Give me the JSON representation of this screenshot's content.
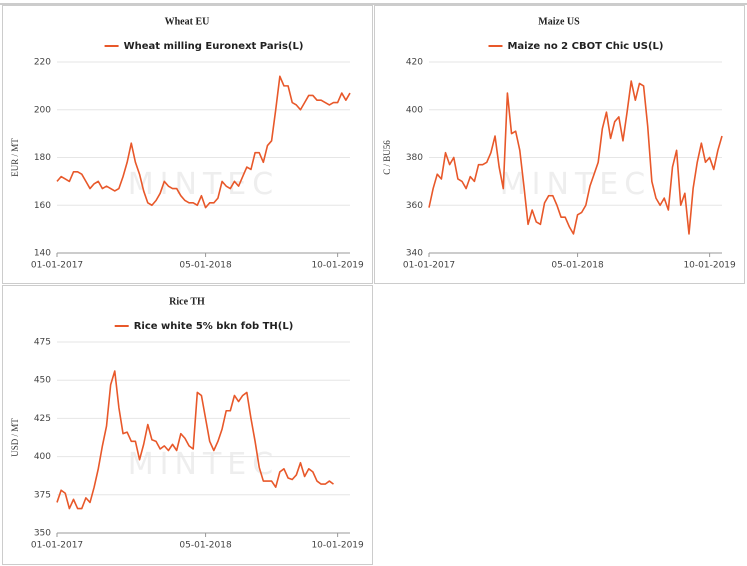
{
  "chart_data": [
    {
      "type": "line",
      "title": "Wheat EU",
      "y_label": "EUR / MT",
      "watermark": "MINTEC",
      "categories": [
        "01-01-2017",
        null,
        null,
        null,
        null,
        null,
        null,
        null,
        null,
        null,
        null,
        null,
        null,
        null,
        null,
        null,
        null,
        null,
        null,
        null,
        null,
        null,
        null,
        null,
        null,
        null,
        null,
        null,
        null,
        null,
        null,
        null,
        null,
        null,
        null,
        null,
        "05-01-2018",
        null,
        null,
        null,
        null,
        null,
        null,
        null,
        null,
        null,
        null,
        null,
        null,
        null,
        null,
        null,
        null,
        null,
        null,
        null,
        null,
        null,
        null,
        null,
        null,
        null,
        null,
        null,
        null,
        null,
        null,
        null,
        "10-01-2019",
        null,
        null,
        null
      ],
      "series": [
        {
          "name": "Wheat milling Euronext Paris(L)",
          "color": "#e8582a",
          "values": [
            170,
            172,
            171,
            170,
            174,
            174,
            173,
            170,
            167,
            169,
            170,
            167,
            168,
            167,
            166,
            167,
            172,
            178,
            186,
            178,
            173,
            166,
            161,
            160,
            162,
            165,
            170,
            168,
            167,
            167,
            164,
            162,
            161,
            161,
            160,
            164,
            159,
            161,
            161,
            163,
            170,
            168,
            167,
            170,
            168,
            172,
            176,
            175,
            182,
            182,
            178,
            185,
            187,
            200,
            214,
            210,
            210,
            203,
            202,
            200,
            203,
            206,
            206,
            204,
            204,
            203,
            202,
            203,
            203,
            207,
            204,
            207
          ]
        }
      ],
      "ylim": [
        140,
        220
      ],
      "yticks": [
        140,
        160,
        180,
        200,
        220
      ],
      "grid": true
    },
    {
      "type": "line",
      "title": "Maize US",
      "y_label": "C / BU56",
      "watermark": "MINTEC",
      "categories": [
        "01-01-2017",
        null,
        null,
        null,
        null,
        null,
        null,
        null,
        null,
        null,
        null,
        null,
        null,
        null,
        null,
        null,
        null,
        null,
        null,
        null,
        null,
        null,
        null,
        null,
        null,
        null,
        null,
        null,
        null,
        null,
        null,
        null,
        null,
        null,
        null,
        null,
        "05-01-2018",
        null,
        null,
        null,
        null,
        null,
        null,
        null,
        null,
        null,
        null,
        null,
        null,
        null,
        null,
        null,
        null,
        null,
        null,
        null,
        null,
        null,
        null,
        null,
        null,
        null,
        null,
        null,
        null,
        null,
        null,
        null,
        "10-01-2019",
        null,
        null,
        null
      ],
      "series": [
        {
          "name": "Maize no 2 CBOT Chic US(L)",
          "color": "#e8582a",
          "values": [
            359,
            367,
            373,
            371,
            382,
            377,
            380,
            371,
            370,
            367,
            372,
            370,
            377,
            377,
            378,
            382,
            389,
            376,
            367,
            407,
            390,
            391,
            383,
            368,
            352,
            358,
            353,
            352,
            361,
            364,
            364,
            360,
            355,
            355,
            351,
            348,
            356,
            357,
            360,
            368,
            373,
            378,
            392,
            399,
            388,
            395,
            397,
            387,
            399,
            412,
            404,
            411,
            410,
            393,
            370,
            363,
            360,
            363,
            358,
            376,
            383,
            360,
            365,
            348,
            367,
            378,
            386,
            378,
            380,
            375,
            383,
            389
          ]
        }
      ],
      "ylim": [
        340,
        420
      ],
      "yticks": [
        340,
        360,
        380,
        400,
        420
      ],
      "grid": true
    },
    {
      "type": "line",
      "title": "Rice TH",
      "y_label": "USD / MT",
      "watermark": "MINTEC",
      "categories": [
        "01-01-2017",
        null,
        null,
        null,
        null,
        null,
        null,
        null,
        null,
        null,
        null,
        null,
        null,
        null,
        null,
        null,
        null,
        null,
        null,
        null,
        null,
        null,
        null,
        null,
        null,
        null,
        null,
        null,
        null,
        null,
        null,
        null,
        null,
        null,
        null,
        null,
        "05-01-2018",
        null,
        null,
        null,
        null,
        null,
        null,
        null,
        null,
        null,
        null,
        null,
        null,
        null,
        null,
        null,
        null,
        null,
        null,
        null,
        null,
        null,
        null,
        null,
        null,
        null,
        null,
        null,
        null,
        null,
        null,
        null,
        "10-01-2019",
        null,
        null,
        null
      ],
      "series": [
        {
          "name": "Rice white 5% bkn fob TH(L)",
          "color": "#e8582a",
          "values": [
            370,
            378,
            376,
            366,
            372,
            366,
            366,
            373,
            370,
            380,
            392,
            407,
            420,
            447,
            456,
            432,
            415,
            416,
            410,
            410,
            398,
            408,
            421,
            411,
            410,
            405,
            407,
            404,
            408,
            404,
            415,
            412,
            407,
            405,
            442,
            440,
            425,
            410,
            404,
            410,
            418,
            430,
            430,
            440,
            436,
            440,
            442,
            425,
            410,
            393,
            384,
            384,
            384,
            380,
            390,
            392,
            386,
            385,
            388,
            396,
            387,
            392,
            390,
            384,
            382,
            382,
            384,
            382,
            null,
            null,
            null,
            null
          ]
        }
      ],
      "ylim": [
        350,
        475
      ],
      "yticks": [
        350,
        375,
        400,
        425,
        450,
        475
      ],
      "grid": true
    }
  ]
}
